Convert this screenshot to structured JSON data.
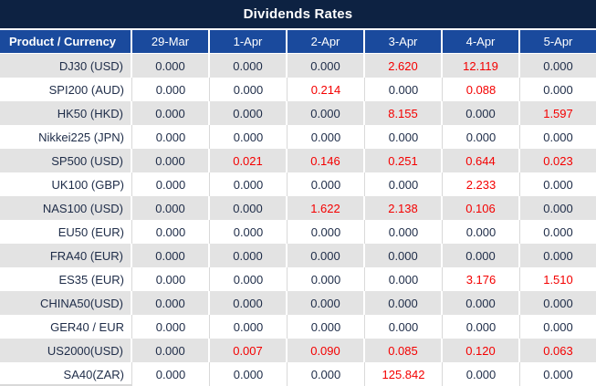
{
  "title": "Dividends Rates",
  "colors": {
    "title_bg": "#0d2242",
    "header_bg": "#1a4a9d",
    "row_alt_bg": "#e3e3e3",
    "red": "#f40000",
    "text_dark": "#1e2c48"
  },
  "table": {
    "header": [
      "Product / Currency",
      "29-Mar",
      "1-Apr",
      "2-Apr",
      "3-Apr",
      "4-Apr",
      "5-Apr"
    ],
    "rows": [
      {
        "product": "DJ30 (USD)",
        "values": [
          "0.000",
          "0.000",
          "0.000",
          "2.620",
          "12.119",
          "0.000"
        ],
        "red": [
          false,
          false,
          false,
          true,
          true,
          false
        ]
      },
      {
        "product": "SPI200 (AUD)",
        "values": [
          "0.000",
          "0.000",
          "0.214",
          "0.000",
          "0.088",
          "0.000"
        ],
        "red": [
          false,
          false,
          true,
          false,
          true,
          false
        ]
      },
      {
        "product": "HK50 (HKD)",
        "values": [
          "0.000",
          "0.000",
          "0.000",
          "8.155",
          "0.000",
          "1.597"
        ],
        "red": [
          false,
          false,
          false,
          true,
          false,
          true
        ]
      },
      {
        "product": "Nikkei225 (JPN)",
        "values": [
          "0.000",
          "0.000",
          "0.000",
          "0.000",
          "0.000",
          "0.000"
        ],
        "red": [
          false,
          false,
          false,
          false,
          false,
          false
        ]
      },
      {
        "product": "SP500 (USD)",
        "values": [
          "0.000",
          "0.021",
          "0.146",
          "0.251",
          "0.644",
          "0.023"
        ],
        "red": [
          false,
          true,
          true,
          true,
          true,
          true
        ]
      },
      {
        "product": "UK100 (GBP)",
        "values": [
          "0.000",
          "0.000",
          "0.000",
          "0.000",
          "2.233",
          "0.000"
        ],
        "red": [
          false,
          false,
          false,
          false,
          true,
          false
        ]
      },
      {
        "product": "NAS100 (USD)",
        "values": [
          "0.000",
          "0.000",
          "1.622",
          "2.138",
          "0.106",
          "0.000"
        ],
        "red": [
          false,
          false,
          true,
          true,
          true,
          false
        ]
      },
      {
        "product": "EU50 (EUR)",
        "values": [
          "0.000",
          "0.000",
          "0.000",
          "0.000",
          "0.000",
          "0.000"
        ],
        "red": [
          false,
          false,
          false,
          false,
          false,
          false
        ]
      },
      {
        "product": "FRA40 (EUR)",
        "values": [
          "0.000",
          "0.000",
          "0.000",
          "0.000",
          "0.000",
          "0.000"
        ],
        "red": [
          false,
          false,
          false,
          false,
          false,
          false
        ]
      },
      {
        "product": "ES35 (EUR)",
        "values": [
          "0.000",
          "0.000",
          "0.000",
          "0.000",
          "3.176",
          "1.510"
        ],
        "red": [
          false,
          false,
          false,
          false,
          true,
          true
        ]
      },
      {
        "product": "CHINA50(USD)",
        "values": [
          "0.000",
          "0.000",
          "0.000",
          "0.000",
          "0.000",
          "0.000"
        ],
        "red": [
          false,
          false,
          false,
          false,
          false,
          false
        ]
      },
      {
        "product": "GER40 / EUR",
        "values": [
          "0.000",
          "0.000",
          "0.000",
          "0.000",
          "0.000",
          "0.000"
        ],
        "red": [
          false,
          false,
          false,
          false,
          false,
          false
        ]
      },
      {
        "product": "US2000(USD)",
        "values": [
          "0.000",
          "0.007",
          "0.090",
          "0.085",
          "0.120",
          "0.063"
        ],
        "red": [
          false,
          true,
          true,
          true,
          true,
          true
        ]
      },
      {
        "product": "SA40(ZAR)",
        "values": [
          "0.000",
          "0.000",
          "0.000",
          "125.842",
          "0.000",
          "0.000"
        ],
        "red": [
          false,
          false,
          false,
          true,
          false,
          false
        ]
      }
    ]
  }
}
